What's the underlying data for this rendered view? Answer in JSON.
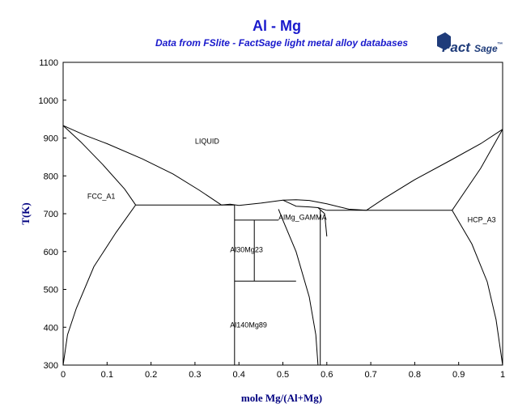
{
  "chart_data": {
    "type": "line",
    "title": "Al - Mg",
    "subtitle": "Data from FSlite - FactSage light metal alloy databases",
    "xlabel": "mole Mg/(Al+Mg)",
    "ylabel": "T(K)",
    "xlim": [
      0,
      1
    ],
    "ylim": [
      300,
      1100
    ],
    "grid": false,
    "x_ticks": [
      "0",
      "0.1",
      "0.2",
      "0.3",
      "0.4",
      "0.5",
      "0.6",
      "0.7",
      "0.8",
      "0.9",
      "1"
    ],
    "y_ticks": [
      "300",
      "400",
      "500",
      "600",
      "700",
      "800",
      "900",
      "1000",
      "1100"
    ],
    "region_labels": [
      {
        "text": "LIQUID",
        "x": 0.3,
        "y": 885
      },
      {
        "text": "FCC_A1",
        "x": 0.055,
        "y": 740
      },
      {
        "text": "AlMg_GAMMA",
        "x": 0.49,
        "y": 684
      },
      {
        "text": "Al30Mg23",
        "x": 0.38,
        "y": 598
      },
      {
        "text": "Al140Mg89",
        "x": 0.38,
        "y": 400
      },
      {
        "text": "HCP_A3",
        "x": 0.92,
        "y": 678
      }
    ],
    "series": [
      {
        "values": [
          [
            0,
            933
          ],
          [
            0.05,
            907
          ],
          [
            0.1,
            885
          ],
          [
            0.18,
            845
          ],
          [
            0.25,
            805
          ],
          [
            0.31,
            762
          ],
          [
            0.36,
            723
          ]
        ]
      },
      {
        "values": [
          [
            0.36,
            723
          ],
          [
            0.38,
            725
          ],
          [
            0.4,
            722
          ],
          [
            0.45,
            728
          ],
          [
            0.5,
            736
          ],
          [
            0.53,
            737
          ],
          [
            0.56,
            735
          ],
          [
            0.6,
            726
          ],
          [
            0.65,
            712
          ],
          [
            0.69,
            709
          ]
        ]
      },
      {
        "values": [
          [
            0.69,
            709
          ],
          [
            0.73,
            740
          ],
          [
            0.8,
            790
          ],
          [
            0.88,
            840
          ],
          [
            0.95,
            885
          ],
          [
            1.0,
            923
          ]
        ]
      },
      {
        "values": [
          [
            0,
            933
          ],
          [
            0.04,
            890
          ],
          [
            0.09,
            830
          ],
          [
            0.14,
            765
          ],
          [
            0.165,
            723
          ]
        ]
      },
      {
        "values": [
          [
            0.165,
            723
          ],
          [
            0.12,
            650
          ],
          [
            0.07,
            560
          ],
          [
            0.03,
            450
          ],
          [
            0.01,
            380
          ],
          [
            0.0,
            300
          ]
        ]
      },
      {
        "values": [
          [
            0.165,
            723
          ],
          [
            0.39,
            723
          ]
        ]
      },
      {
        "values": [
          [
            0.39,
            723
          ],
          [
            0.39,
            300
          ]
        ]
      },
      {
        "values": [
          [
            0.39,
            683
          ],
          [
            0.49,
            683
          ]
        ]
      },
      {
        "values": [
          [
            0.435,
            683
          ],
          [
            0.435,
            522
          ]
        ]
      },
      {
        "values": [
          [
            0.39,
            522
          ],
          [
            0.53,
            522
          ]
        ]
      },
      {
        "values": [
          [
            0.49,
            712
          ],
          [
            0.5,
            683
          ],
          [
            0.53,
            600
          ],
          [
            0.56,
            480
          ],
          [
            0.575,
            380
          ],
          [
            0.58,
            300
          ]
        ]
      },
      {
        "values": [
          [
            0.5,
            736
          ],
          [
            0.53,
            720
          ],
          [
            0.56,
            718
          ],
          [
            0.58,
            716
          ],
          [
            0.6,
            709
          ]
        ]
      },
      {
        "values": [
          [
            0.58,
            716
          ],
          [
            0.595,
            700
          ],
          [
            0.6,
            640
          ]
        ]
      },
      {
        "values": [
          [
            0.585,
            709
          ],
          [
            0.585,
            300
          ]
        ]
      },
      {
        "values": [
          [
            0.6,
            709
          ],
          [
            0.885,
            709
          ]
        ]
      },
      {
        "values": [
          [
            0.885,
            709
          ],
          [
            0.95,
            820
          ],
          [
            1.0,
            923
          ]
        ]
      },
      {
        "values": [
          [
            0.885,
            709
          ],
          [
            0.93,
            620
          ],
          [
            0.965,
            520
          ],
          [
            0.985,
            420
          ],
          [
            0.995,
            340
          ],
          [
            1.0,
            300
          ]
        ]
      }
    ]
  },
  "logo": {
    "text_main": "Fact",
    "text_sage": "Sage",
    "mark": "™"
  }
}
